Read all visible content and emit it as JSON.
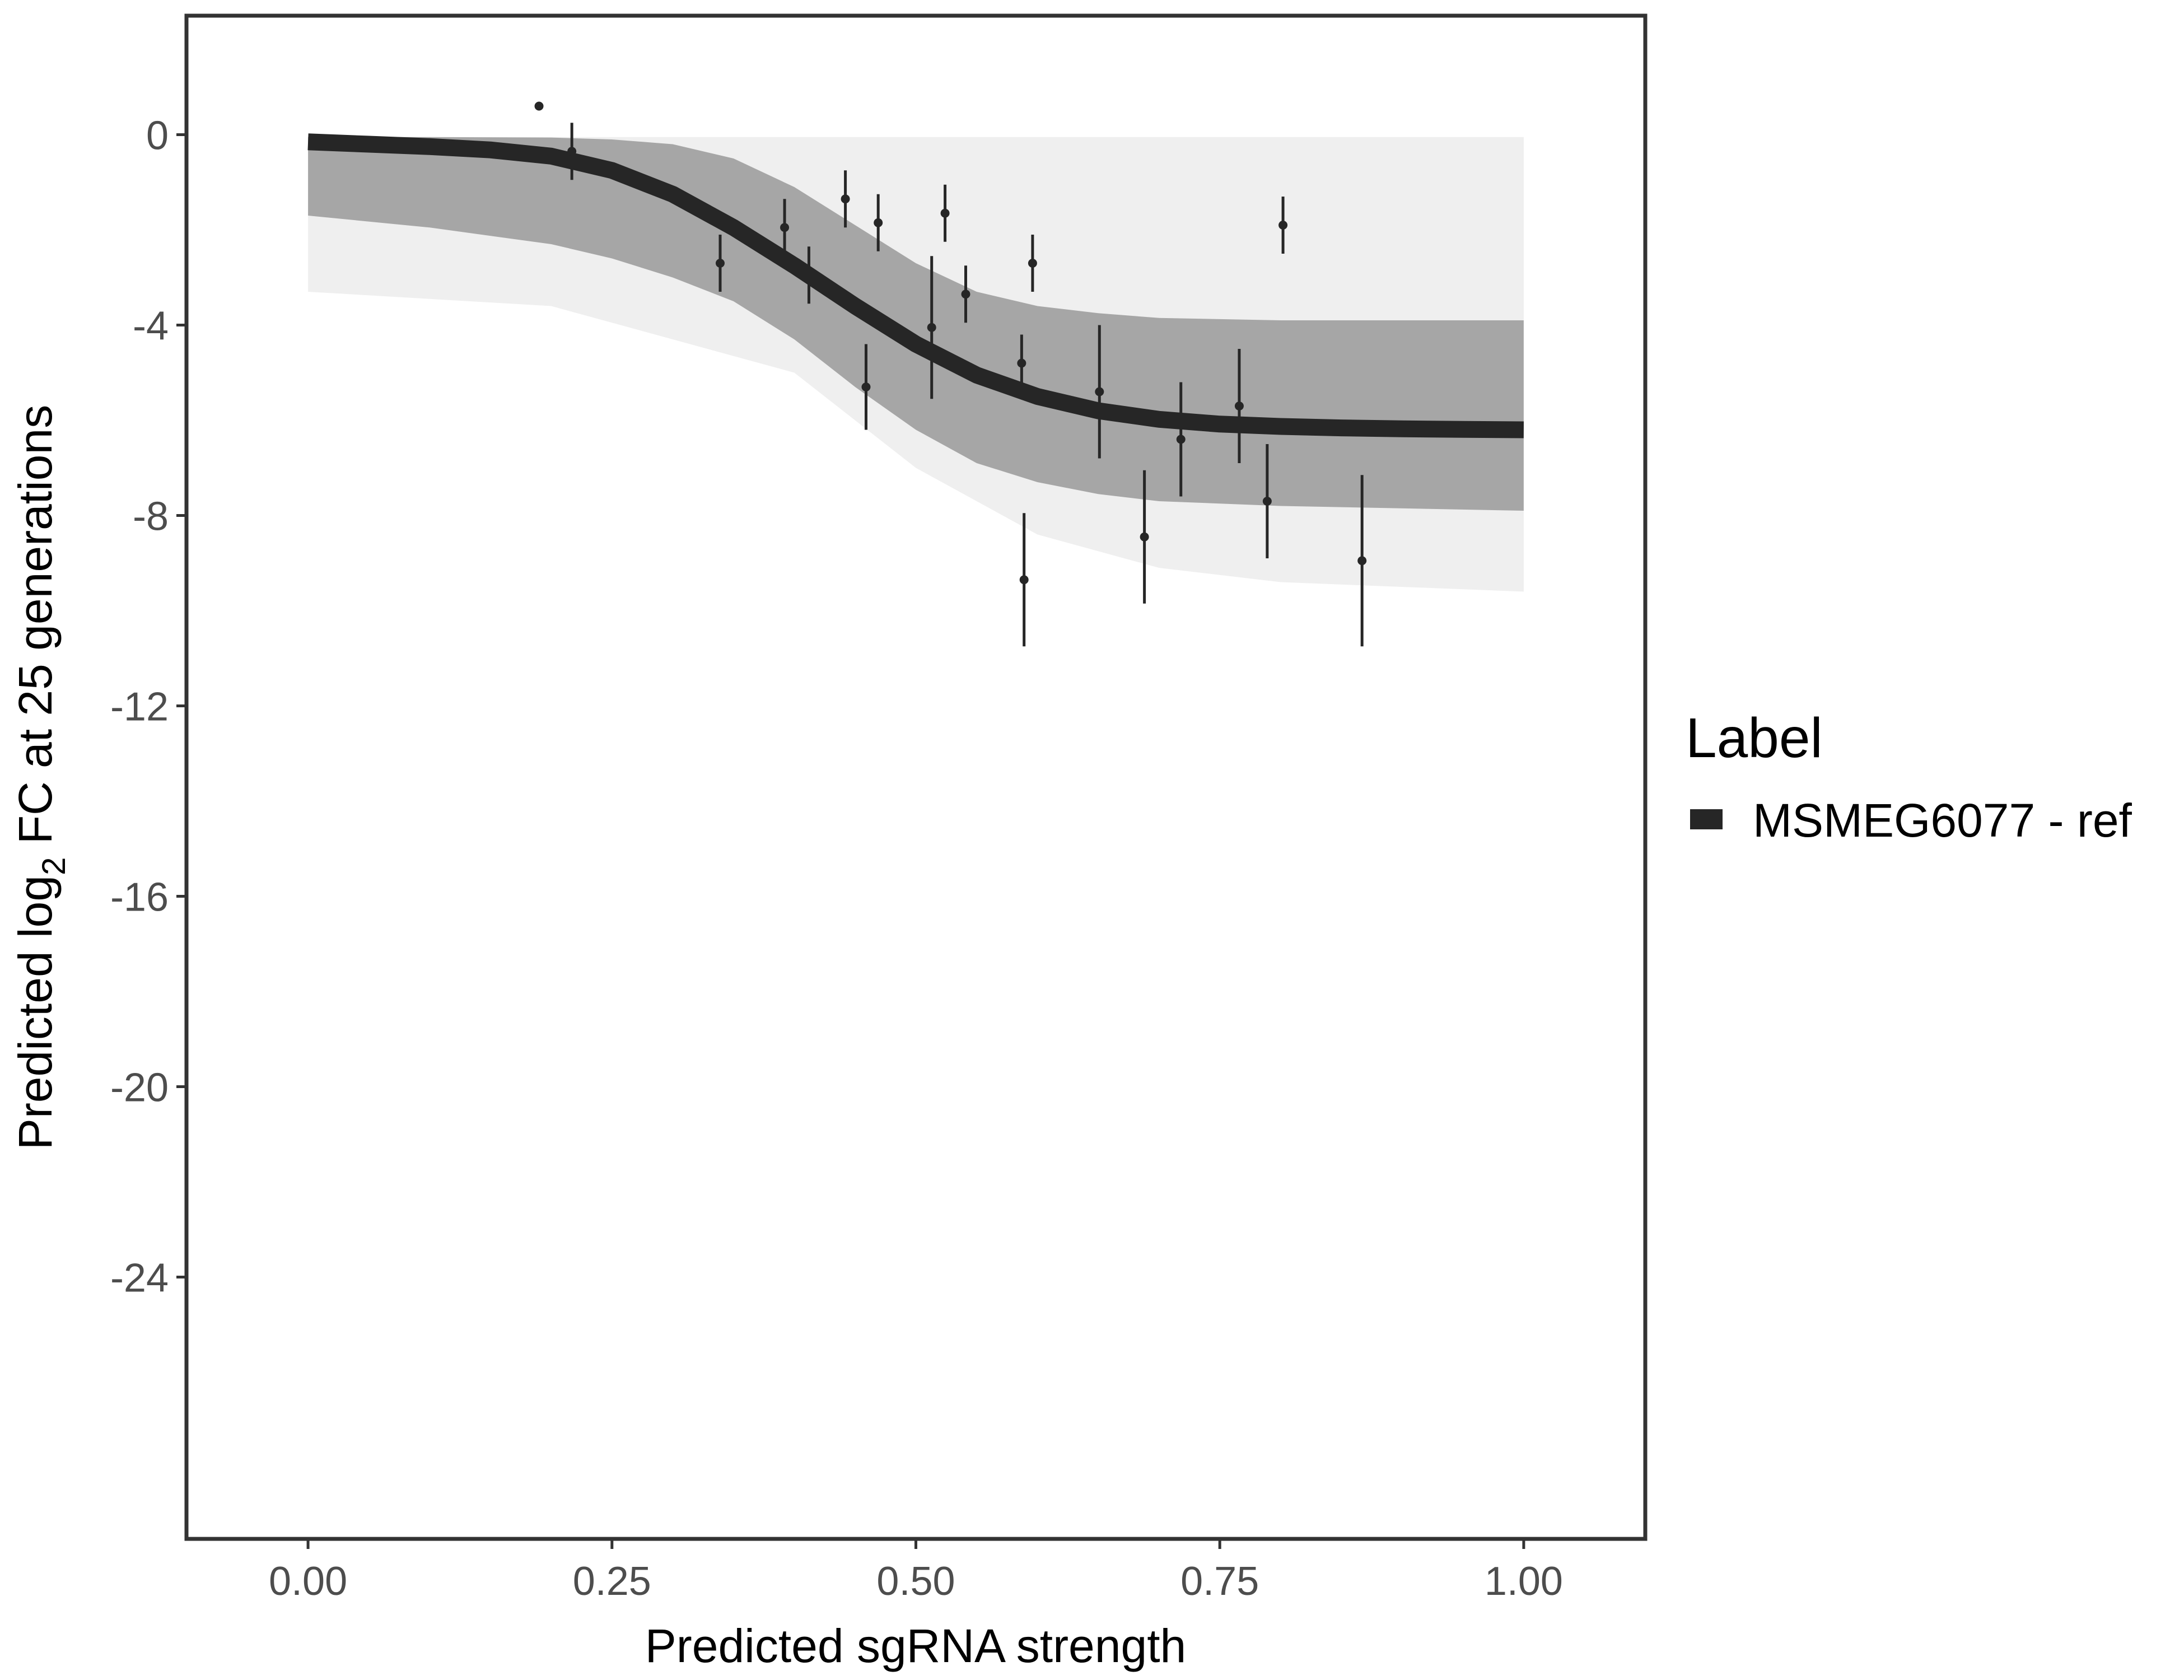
{
  "chart_data": {
    "type": "line",
    "title": "",
    "xlabel": "Predicted sgRNA strength",
    "ylabel": {
      "prefix": "Predicted  log",
      "subscript": "2",
      "suffix": " FC at 25 generations"
    },
    "xlim": [
      -0.1,
      1.1
    ],
    "ylim": [
      -29.5,
      2.5
    ],
    "x_ticks": [
      0.0,
      0.25,
      0.5,
      0.75,
      1.0
    ],
    "x_tick_labels": [
      "0.00",
      "0.25",
      "0.50",
      "0.75",
      "1.00"
    ],
    "y_ticks": [
      0,
      -4,
      -8,
      -12,
      -16,
      -20,
      -24
    ],
    "y_tick_labels": [
      "0",
      "-4",
      "-8",
      "-12",
      "-16",
      "-20",
      "-24"
    ],
    "grid": false,
    "legend": {
      "title": "Label",
      "position": "right",
      "entries": [
        {
          "name": "MSMEG6077 - ref",
          "color": "#262626"
        }
      ]
    },
    "fitted_curve": {
      "name": "MSMEG6077 - ref",
      "color": "#262626",
      "x": [
        0.0,
        0.05,
        0.1,
        0.15,
        0.2,
        0.25,
        0.3,
        0.35,
        0.4,
        0.45,
        0.5,
        0.55,
        0.6,
        0.65,
        0.7,
        0.75,
        0.8,
        0.85,
        0.9,
        0.95,
        1.0
      ],
      "y": [
        -0.15,
        -0.2,
        -0.25,
        -0.32,
        -0.45,
        -0.75,
        -1.25,
        -1.95,
        -2.75,
        -3.6,
        -4.4,
        -5.05,
        -5.5,
        -5.8,
        -5.98,
        -6.08,
        -6.13,
        -6.16,
        -6.18,
        -6.19,
        -6.2
      ]
    },
    "posterior_band": {
      "color": "#a6a6a6",
      "upper": {
        "x": [
          0.0,
          0.1,
          0.2,
          0.25,
          0.3,
          0.35,
          0.4,
          0.45,
          0.5,
          0.55,
          0.6,
          0.65,
          0.7,
          0.8,
          0.9,
          1.0
        ],
        "y": [
          -0.05,
          -0.05,
          -0.06,
          -0.1,
          -0.2,
          -0.5,
          -1.1,
          -1.9,
          -2.7,
          -3.3,
          -3.6,
          -3.75,
          -3.85,
          -3.9,
          -3.9,
          -3.9
        ]
      },
      "lower": {
        "x": [
          0.0,
          0.1,
          0.2,
          0.25,
          0.3,
          0.35,
          0.4,
          0.45,
          0.5,
          0.55,
          0.6,
          0.65,
          0.7,
          0.8,
          0.9,
          1.0
        ],
        "y": [
          -1.7,
          -1.95,
          -2.3,
          -2.6,
          -3.0,
          -3.5,
          -4.3,
          -5.3,
          -6.2,
          -6.9,
          -7.3,
          -7.55,
          -7.7,
          -7.8,
          -7.85,
          -7.9
        ]
      },
      "faint_upper_y": -0.05,
      "faint_lower": {
        "x": [
          0.0,
          0.2,
          0.4,
          0.5,
          0.6,
          0.7,
          0.8,
          1.0
        ],
        "y": [
          -3.3,
          -3.6,
          -5.0,
          -7.0,
          -8.4,
          -9.1,
          -9.4,
          -9.6
        ]
      }
    },
    "observations": [
      {
        "x": 0.19,
        "y": 0.6,
        "err": 0.0
      },
      {
        "x": 0.217,
        "y": -0.35,
        "err": 0.6
      },
      {
        "x": 0.339,
        "y": -2.7,
        "err": 0.6
      },
      {
        "x": 0.392,
        "y": -1.95,
        "err": 0.6
      },
      {
        "x": 0.412,
        "y": -2.95,
        "err": 0.6
      },
      {
        "x": 0.442,
        "y": -1.35,
        "err": 0.6
      },
      {
        "x": 0.459,
        "y": -5.3,
        "err": 0.9
      },
      {
        "x": 0.469,
        "y": -1.85,
        "err": 0.6
      },
      {
        "x": 0.513,
        "y": -4.05,
        "err": 1.5
      },
      {
        "x": 0.524,
        "y": -1.65,
        "err": 0.6
      },
      {
        "x": 0.541,
        "y": -3.35,
        "err": 0.6
      },
      {
        "x": 0.587,
        "y": -4.8,
        "err": 0.6
      },
      {
        "x": 0.589,
        "y": -9.35,
        "err": 1.4
      },
      {
        "x": 0.596,
        "y": -2.7,
        "err": 0.6
      },
      {
        "x": 0.651,
        "y": -5.4,
        "err": 1.4
      },
      {
        "x": 0.688,
        "y": -8.45,
        "err": 1.4
      },
      {
        "x": 0.718,
        "y": -6.4,
        "err": 1.2
      },
      {
        "x": 0.766,
        "y": -5.7,
        "err": 1.2
      },
      {
        "x": 0.789,
        "y": -7.7,
        "err": 1.2
      },
      {
        "x": 0.802,
        "y": -1.9,
        "err": 0.6
      },
      {
        "x": 0.867,
        "y": -8.95,
        "err": 1.8
      }
    ]
  }
}
